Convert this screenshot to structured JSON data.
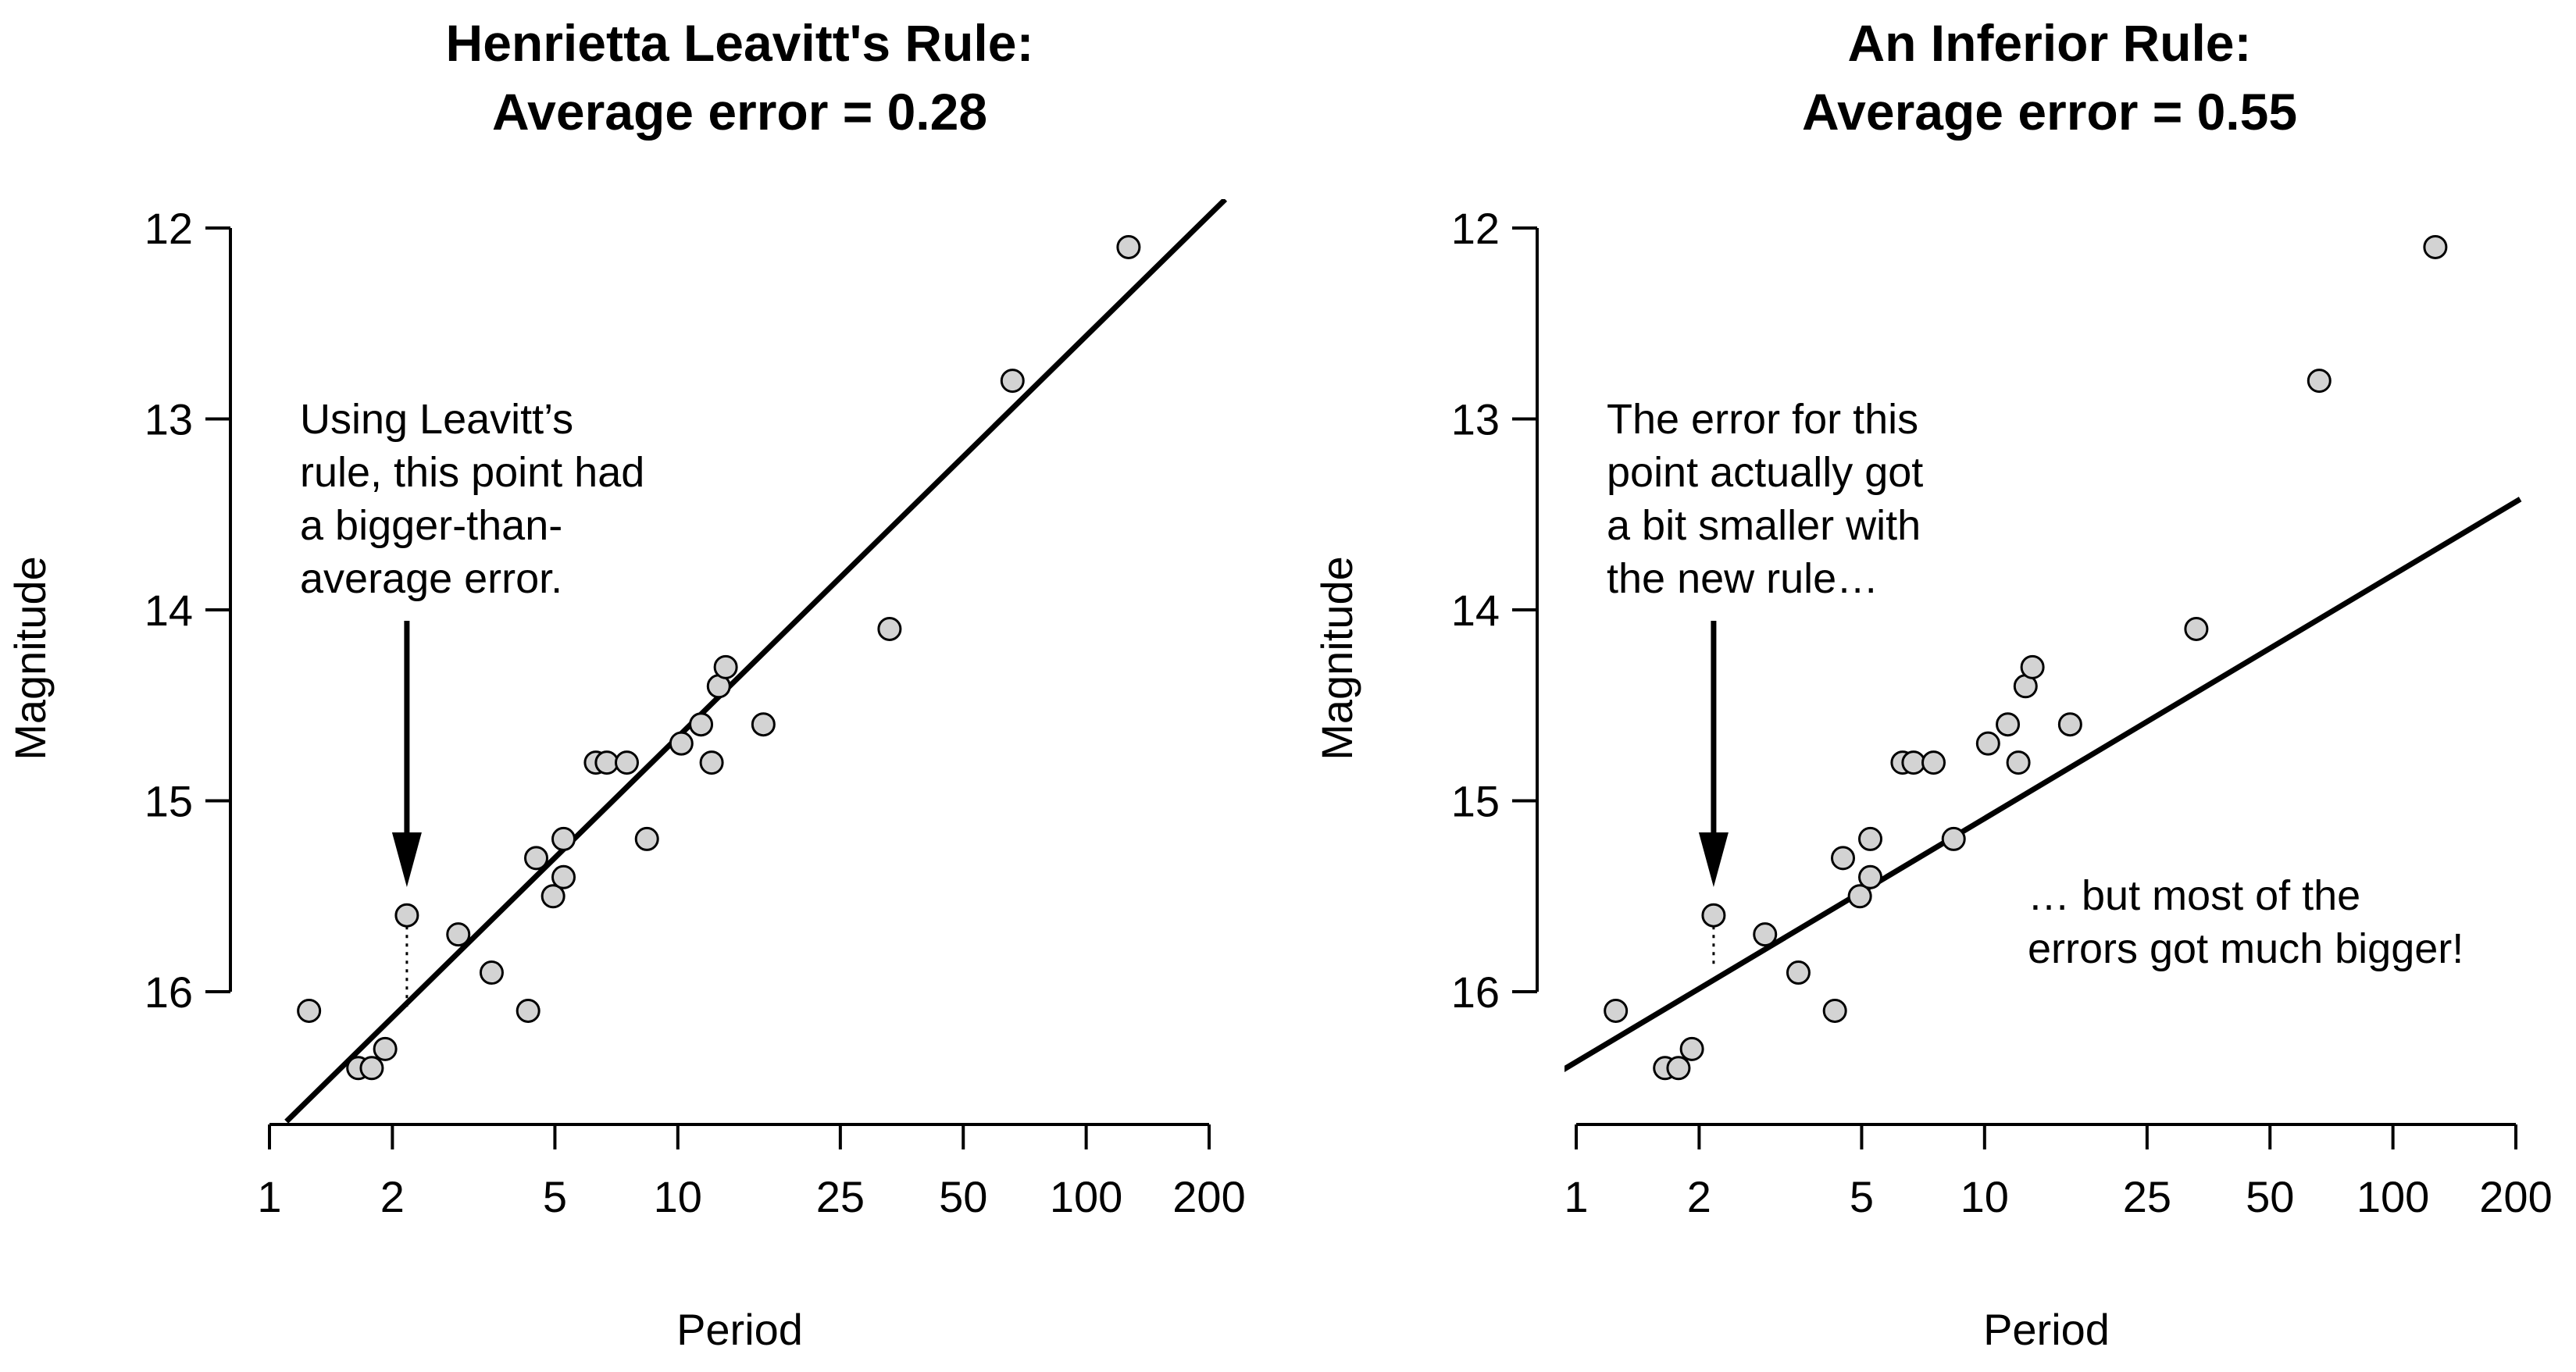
{
  "chart_data": [
    {
      "type": "scatter",
      "title": [
        "Henrietta Leavitt's Rule:",
        "Average error = 0.28"
      ],
      "xlabel": "Period",
      "ylabel": "Magnitude",
      "xscale": "log",
      "xticks": [
        1,
        2,
        5,
        10,
        25,
        50,
        100,
        200
      ],
      "xtick_labels": [
        "1",
        "2",
        "5",
        "10",
        "25",
        "50",
        "100",
        "200"
      ],
      "yticks": [
        12,
        13,
        14,
        15,
        16
      ],
      "ytick_labels": [
        "12",
        "13",
        "14",
        "15",
        "16"
      ],
      "yinverted": true,
      "xlim": [
        1,
        200
      ],
      "ylim": [
        16.7,
        11.9
      ],
      "points": [
        {
          "x": 1.25,
          "y": 16.1
        },
        {
          "x": 1.65,
          "y": 16.4
        },
        {
          "x": 1.78,
          "y": 16.4
        },
        {
          "x": 1.92,
          "y": 16.3
        },
        {
          "x": 2.17,
          "y": 15.6
        },
        {
          "x": 2.9,
          "y": 15.7
        },
        {
          "x": 3.5,
          "y": 15.9
        },
        {
          "x": 4.3,
          "y": 16.1
        },
        {
          "x": 4.5,
          "y": 15.3
        },
        {
          "x": 4.95,
          "y": 15.5
        },
        {
          "x": 5.25,
          "y": 15.2
        },
        {
          "x": 5.25,
          "y": 15.4
        },
        {
          "x": 6.3,
          "y": 14.8
        },
        {
          "x": 6.7,
          "y": 14.8
        },
        {
          "x": 7.5,
          "y": 14.8
        },
        {
          "x": 8.4,
          "y": 15.2
        },
        {
          "x": 10.2,
          "y": 14.7
        },
        {
          "x": 11.4,
          "y": 14.6
        },
        {
          "x": 12.1,
          "y": 14.8
        },
        {
          "x": 12.6,
          "y": 14.4
        },
        {
          "x": 13.1,
          "y": 14.3
        },
        {
          "x": 16.2,
          "y": 14.6
        },
        {
          "x": 33,
          "y": 14.1
        },
        {
          "x": 66,
          "y": 12.8
        },
        {
          "x": 127,
          "y": 12.1
        }
      ],
      "fit_line": {
        "x": [
          1.1,
          219
        ],
        "y": [
          16.68,
          11.85
        ]
      },
      "highlight_point": {
        "x": 2.17,
        "y": 15.6,
        "line_y": 16.09
      },
      "annotation": [
        "Using Leavitt’s",
        "rule, this point had",
        "a bigger-than-",
        "average error."
      ]
    },
    {
      "type": "scatter",
      "title": [
        "An Inferior Rule:",
        "Average error = 0.55"
      ],
      "xlabel": "Period",
      "ylabel": "Magnitude",
      "xscale": "log",
      "xticks": [
        1,
        2,
        5,
        10,
        25,
        50,
        100,
        200
      ],
      "xtick_labels": [
        "1",
        "2",
        "5",
        "10",
        "25",
        "50",
        "100",
        "200"
      ],
      "yticks": [
        12,
        13,
        14,
        15,
        16
      ],
      "ytick_labels": [
        "12",
        "13",
        "14",
        "15",
        "16"
      ],
      "yinverted": true,
      "xlim": [
        1,
        200
      ],
      "ylim": [
        16.7,
        11.9
      ],
      "points": [
        {
          "x": 1.25,
          "y": 16.1
        },
        {
          "x": 1.65,
          "y": 16.4
        },
        {
          "x": 1.78,
          "y": 16.4
        },
        {
          "x": 1.92,
          "y": 16.3
        },
        {
          "x": 2.17,
          "y": 15.6
        },
        {
          "x": 2.9,
          "y": 15.7
        },
        {
          "x": 3.5,
          "y": 15.9
        },
        {
          "x": 4.3,
          "y": 16.1
        },
        {
          "x": 4.5,
          "y": 15.3
        },
        {
          "x": 4.95,
          "y": 15.5
        },
        {
          "x": 5.25,
          "y": 15.2
        },
        {
          "x": 5.25,
          "y": 15.4
        },
        {
          "x": 6.3,
          "y": 14.8
        },
        {
          "x": 6.7,
          "y": 14.8
        },
        {
          "x": 7.5,
          "y": 14.8
        },
        {
          "x": 8.4,
          "y": 15.2
        },
        {
          "x": 10.2,
          "y": 14.7
        },
        {
          "x": 11.4,
          "y": 14.6
        },
        {
          "x": 12.1,
          "y": 14.8
        },
        {
          "x": 12.6,
          "y": 14.4
        },
        {
          "x": 13.1,
          "y": 14.3
        },
        {
          "x": 16.2,
          "y": 14.6
        },
        {
          "x": 33,
          "y": 14.1
        },
        {
          "x": 66,
          "y": 12.8
        },
        {
          "x": 127,
          "y": 12.1
        }
      ],
      "fit_line": {
        "x": [
          0.91,
          205
        ],
        "y": [
          16.42,
          13.42
        ]
      },
      "highlight_point": {
        "x": 2.17,
        "y": 15.6,
        "line_y": 15.88
      },
      "annotation": [
        "The error for this",
        "point actually got",
        "a bit smaller with",
        "the new rule…"
      ],
      "annotation2": [
        "… but most of the",
        "errors got much bigger!"
      ]
    }
  ]
}
